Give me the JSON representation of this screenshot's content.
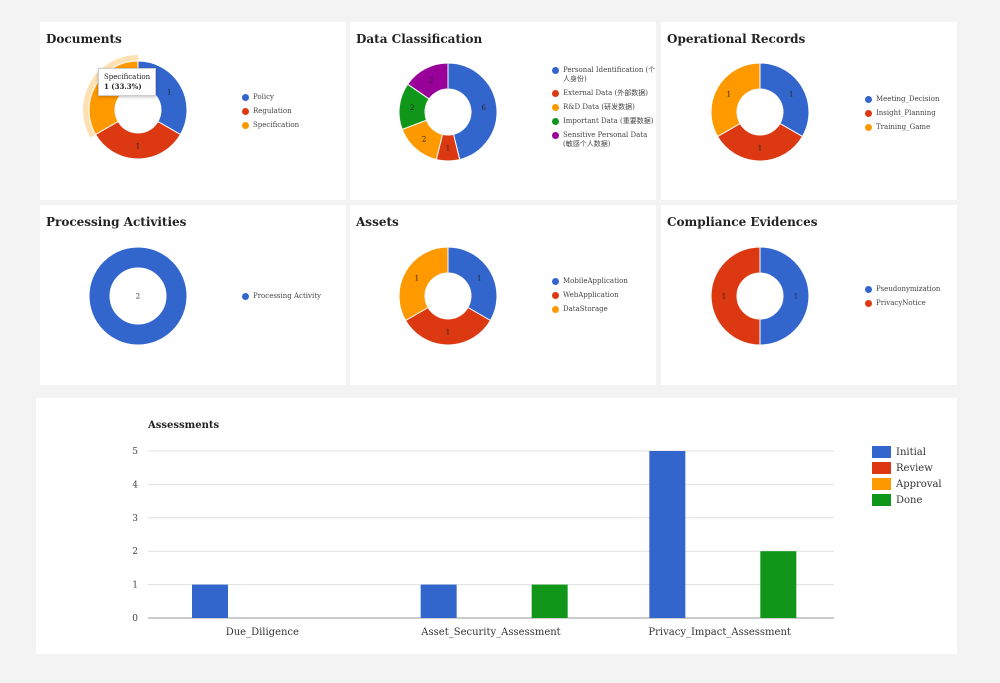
{
  "colors": {
    "blue": "#3366cc",
    "red": "#dc3912",
    "orange": "#ff9900",
    "green": "#109618",
    "purple": "#990099"
  },
  "tooltip": {
    "label": "Specification",
    "value": "1 (33.3%)"
  },
  "chart_data": [
    {
      "type": "pie",
      "title": "Documents",
      "labels": [
        "Policy",
        "Regulation",
        "Specification"
      ],
      "values": [
        1,
        1,
        1
      ],
      "colors": [
        "#3366cc",
        "#dc3912",
        "#ff9900"
      ],
      "legend": "right"
    },
    {
      "type": "pie",
      "title": "Data Classification",
      "labels": [
        "Personal Identification (个人身份)",
        "External Data (外部数据)",
        "R&D Data (研发数据)",
        "Important Data (重要数据)",
        "Sensitive Personal Data (敏感个人数据)"
      ],
      "values": [
        6,
        1,
        2,
        2,
        2
      ],
      "colors": [
        "#3366cc",
        "#dc3912",
        "#ff9900",
        "#109618",
        "#990099"
      ],
      "legend": "right"
    },
    {
      "type": "pie",
      "title": "Operational Records",
      "labels": [
        "Meeting_Decision",
        "Insight_Planning",
        "Training_Game"
      ],
      "values": [
        1,
        1,
        1
      ],
      "colors": [
        "#3366cc",
        "#dc3912",
        "#ff9900"
      ],
      "legend": "right"
    },
    {
      "type": "pie",
      "title": "Processing Activities",
      "labels": [
        "Processing Activity"
      ],
      "values": [
        2
      ],
      "colors": [
        "#3366cc"
      ],
      "legend": "right"
    },
    {
      "type": "pie",
      "title": "Assets",
      "labels": [
        "MobileApplication",
        "WebApplication",
        "DataStorage"
      ],
      "values": [
        1,
        1,
        1
      ],
      "colors": [
        "#3366cc",
        "#dc3912",
        "#ff9900"
      ],
      "legend": "right"
    },
    {
      "type": "pie",
      "title": "Compliance Evidences",
      "labels": [
        "Pseudonymization",
        "PrivacyNotice"
      ],
      "values": [
        1,
        1
      ],
      "colors": [
        "#3366cc",
        "#dc3912"
      ],
      "legend": "right"
    },
    {
      "type": "bar",
      "title": "Assessments",
      "categories": [
        "Due_Diligence",
        "Asset_Security_Assessment",
        "Privacy_Impact_Assessment"
      ],
      "series": [
        {
          "name": "Initial",
          "values": [
            1,
            1,
            5
          ],
          "color": "#3366cc"
        },
        {
          "name": "Review",
          "values": [
            0,
            0,
            0
          ],
          "color": "#dc3912"
        },
        {
          "name": "Approval",
          "values": [
            0,
            0,
            0
          ],
          "color": "#ff9900"
        },
        {
          "name": "Done",
          "values": [
            0,
            1,
            2
          ],
          "color": "#109618"
        }
      ],
      "y_ticks": [
        "0",
        "1",
        "2",
        "3",
        "4",
        "5"
      ],
      "ylim": [
        0,
        5
      ],
      "grid": true,
      "legend": "right"
    }
  ]
}
